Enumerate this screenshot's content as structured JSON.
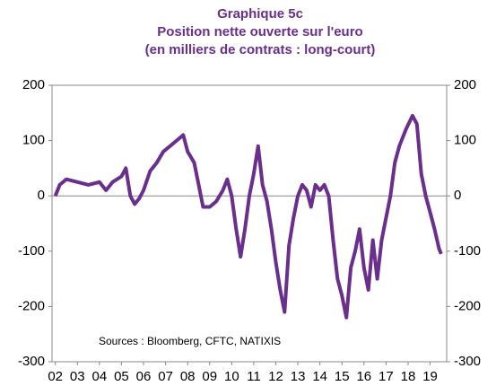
{
  "chart_data": {
    "type": "line",
    "title": [
      "Graphique 5c",
      "Position nette ouverte sur l'euro",
      "(en milliers de contrats : long-court)"
    ],
    "annotation": "Sources  : Bloomberg,  CFTC, NATIXIS",
    "x": [
      2.0,
      2.2,
      2.5,
      3.0,
      3.5,
      4.0,
      4.3,
      4.6,
      5.0,
      5.2,
      5.4,
      5.6,
      5.8,
      6.0,
      6.3,
      6.6,
      6.9,
      7.2,
      7.5,
      7.8,
      8.0,
      8.3,
      8.5,
      8.7,
      9.0,
      9.3,
      9.6,
      9.8,
      10.0,
      10.2,
      10.4,
      10.6,
      10.8,
      11.0,
      11.2,
      11.4,
      11.6,
      11.8,
      12.0,
      12.2,
      12.4,
      12.6,
      12.8,
      13.0,
      13.2,
      13.4,
      13.6,
      13.8,
      14.0,
      14.2,
      14.4,
      14.6,
      14.8,
      15.0,
      15.2,
      15.4,
      15.6,
      15.8,
      16.0,
      16.2,
      16.4,
      16.6,
      16.8,
      17.0,
      17.2,
      17.4,
      17.6,
      17.9,
      18.2,
      18.4,
      18.6,
      18.8,
      19.0,
      19.2,
      19.4,
      19.5
    ],
    "series": [
      {
        "name": "Position nette",
        "color": "#6a2e8c",
        "values": [
          0,
          20,
          30,
          25,
          20,
          25,
          10,
          25,
          35,
          50,
          0,
          -15,
          -5,
          10,
          45,
          60,
          80,
          90,
          100,
          110,
          80,
          60,
          20,
          -20,
          -20,
          -10,
          10,
          30,
          0,
          -60,
          -110,
          -60,
          0,
          40,
          90,
          20,
          -10,
          -60,
          -120,
          -170,
          -210,
          -90,
          -40,
          0,
          20,
          10,
          -20,
          20,
          10,
          20,
          0,
          -80,
          -150,
          -180,
          -220,
          -130,
          -100,
          -60,
          -130,
          -170,
          -80,
          -150,
          -80,
          -40,
          0,
          60,
          90,
          120,
          145,
          130,
          40,
          0,
          -30,
          -60,
          -95,
          -105
        ]
      }
    ],
    "xlim": [
      1.85,
      19.75
    ],
    "xticks": [
      {
        "value": 2,
        "label": "02"
      },
      {
        "value": 3,
        "label": "03"
      },
      {
        "value": 4,
        "label": "04"
      },
      {
        "value": 5,
        "label": "05"
      },
      {
        "value": 6,
        "label": "06"
      },
      {
        "value": 7,
        "label": "07"
      },
      {
        "value": 8,
        "label": "08"
      },
      {
        "value": 9,
        "label": "09"
      },
      10,
      11,
      12,
      13,
      14,
      15,
      16,
      17,
      18,
      19
    ],
    "ylim": [
      -300,
      200
    ],
    "yticks": [
      -300,
      -200,
      -100,
      0,
      100,
      200
    ],
    "y2lim": [
      -300,
      200
    ],
    "y2ticks": [
      -300,
      -200,
      -100,
      0,
      100,
      200
    ]
  }
}
